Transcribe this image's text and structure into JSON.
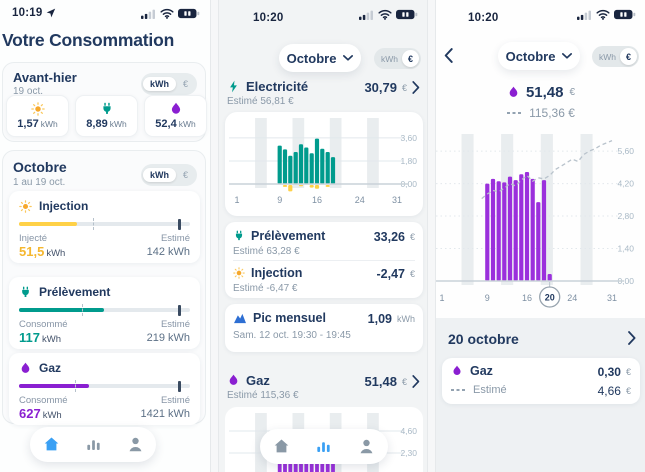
{
  "ui": {
    "unit_kwh": "kWh",
    "unit_eur": "€"
  },
  "colors": {
    "teal": "#009b8d",
    "yellow_bar": "#ffd147",
    "gold_text": "#f5b72f",
    "purple": "#8a1fd1",
    "purple_bar": "#9b30dc",
    "blue_active": "#3aa0f4",
    "navy": "#21395f",
    "pic_blue": "#2e6fd3"
  },
  "panels": {
    "home": {
      "status_time": "10:19",
      "title": "Votre Consommation",
      "yesterday_card": {
        "title": "Avant-hier",
        "date": "19 oct.",
        "chips": [
          {
            "icon": "sun-icon",
            "value": "1,57",
            "unit": "kWh"
          },
          {
            "icon": "plug-icon",
            "value": "8,89",
            "unit": "kWh"
          },
          {
            "icon": "flame-icon",
            "value": "52,4",
            "unit": "kWh"
          }
        ]
      },
      "month_card": {
        "title": "Octobre",
        "date": "1 au 19 oct.",
        "meters": [
          {
            "label": "Injection",
            "icon": "sun-icon",
            "left_label": "Injecté",
            "left_value": "51,5",
            "left_unit": "kWh",
            "right_label": "Estimé",
            "right_value": "142 kWh",
            "consumed": 51.5,
            "estimated": 142,
            "marker_pct": 43,
            "bar_color": "#ffd147",
            "value_color": "#f5b72f"
          },
          {
            "label": "Prélèvement",
            "icon": "plug-icon",
            "left_label": "Consommé",
            "left_value": "117",
            "left_unit": "kWh",
            "right_label": "Estimé",
            "right_value": "219 kWh",
            "consumed": 117,
            "estimated": 219,
            "marker_pct": 37,
            "bar_color": "#009b8d",
            "value_color": "#009b8d"
          },
          {
            "label": "Gaz",
            "icon": "flame-icon",
            "left_label": "Consommé",
            "left_value": "627",
            "left_unit": "kWh",
            "right_label": "Estimé",
            "right_value": "1421 kWh",
            "consumed": 627,
            "estimated": 1421,
            "marker_pct": 33,
            "bar_color": "#8a1fd1",
            "value_color": "#8a1fd1"
          }
        ]
      }
    },
    "overview": {
      "status_time": "10:20",
      "month_pill": "Octobre",
      "electricity": {
        "label": "Electricité",
        "amount": "30,79",
        "currency": "€",
        "estimate": "Estimé 56,81 €"
      },
      "prelevement": {
        "label": "Prélèvement",
        "amount": "33,26",
        "currency": "€",
        "estimate": "Estimé 63,28 €"
      },
      "injection": {
        "label": "Injection",
        "amount": "-2,47",
        "currency": "€",
        "estimate": "Estimé -6,47 €"
      },
      "pic": {
        "label": "Pic mensuel",
        "amount": "1,09",
        "unit": "kWh",
        "subtitle": "Sam. 12 oct. 19:30 - 19:45"
      },
      "gas": {
        "label": "Gaz",
        "amount": "51,48",
        "currency": "€",
        "estimate": "Estimé 115,36 €"
      }
    },
    "gas_detail": {
      "status_time": "10:20",
      "month_pill": "Octobre",
      "summary": {
        "amount": "51,48",
        "currency": "€",
        "estimate_amount": "115,36",
        "estimate_currency": "€"
      },
      "day_section": {
        "title": "20 octobre",
        "gas_row": {
          "label": "Gaz",
          "amount": "0,30",
          "currency": "€"
        },
        "estimate_row": {
          "label": "Estimé",
          "amount": "4,66",
          "currency": "€"
        }
      }
    }
  },
  "chart_data": [
    {
      "id": "electricity-daily",
      "type": "bar",
      "x_days": [
        9,
        10,
        11,
        12,
        13,
        14,
        15,
        16,
        17,
        18,
        19
      ],
      "series": [
        {
          "name": "prelevement",
          "color": "#009b8d",
          "values": [
            3.0,
            2.7,
            2.2,
            2.5,
            3.1,
            2.85,
            2.4,
            3.55,
            2.75,
            2.5,
            2.1
          ]
        },
        {
          "name": "injection",
          "color": "#ffd147",
          "values": [
            0,
            -0.15,
            -0.5,
            0,
            -0.1,
            0,
            -0.2,
            -0.3,
            0,
            -0.15,
            0
          ]
        }
      ],
      "y_ticks": [
        {
          "v": 3.6,
          "label": "3,60"
        },
        {
          "v": 1.8,
          "label": "1,80"
        },
        {
          "v": 0,
          "label": "0,00"
        }
      ],
      "x_ticks": [
        1,
        9,
        16,
        24,
        31
      ],
      "xlim": [
        1,
        31
      ],
      "weekend_bands": [
        [
          5,
          6
        ],
        [
          12,
          13
        ],
        [
          19,
          20
        ],
        [
          26,
          27
        ]
      ]
    },
    {
      "id": "gas-daily-partial",
      "type": "bar",
      "x_days": [
        9,
        10,
        11,
        12,
        13,
        14,
        15,
        16,
        17,
        18,
        19
      ],
      "series": [
        {
          "name": "gaz",
          "color": "#9b30dc",
          "values": [
            4.2,
            4.4,
            4.3,
            4.25,
            4.5,
            4.35,
            4.6,
            4.7,
            4.4,
            3.4,
            4.35
          ]
        }
      ],
      "y_ticks": [
        {
          "v": 4.6,
          "label": "4,60"
        },
        {
          "v": 2.3,
          "label": "2,30"
        }
      ],
      "x_ticks": [],
      "xlim": [
        1,
        31
      ],
      "weekend_bands": [
        [
          5,
          6
        ],
        [
          12,
          13
        ],
        [
          19,
          20
        ],
        [
          26,
          27
        ]
      ],
      "clipped": true
    },
    {
      "id": "gas-daily-detail",
      "type": "bar+line",
      "x_days": [
        9,
        10,
        11,
        12,
        13,
        14,
        15,
        16,
        17,
        18,
        19,
        20
      ],
      "series": [
        {
          "name": "gaz",
          "color": "#9b30dc",
          "values": [
            4.2,
            4.4,
            4.3,
            4.25,
            4.5,
            4.35,
            4.6,
            4.7,
            4.4,
            3.4,
            4.35,
            0.3
          ]
        }
      ],
      "line": {
        "name": "estime",
        "style": "dashed",
        "color": "#b9c3cc",
        "points": [
          [
            8,
            3.55
          ],
          [
            9,
            3.75
          ],
          [
            10,
            3.9
          ],
          [
            11,
            3.85
          ],
          [
            12,
            4.0
          ],
          [
            13,
            4.2
          ],
          [
            14,
            4.1
          ],
          [
            15,
            4.35
          ],
          [
            16,
            4.55
          ],
          [
            17,
            4.3
          ],
          [
            18,
            4.45
          ],
          [
            19,
            4.4
          ],
          [
            20,
            4.55
          ],
          [
            21,
            4.8
          ],
          [
            22,
            4.95
          ],
          [
            23,
            5.1
          ],
          [
            24,
            5.25
          ],
          [
            25,
            5.15
          ],
          [
            26,
            5.45
          ],
          [
            27,
            5.6
          ],
          [
            28,
            5.7
          ],
          [
            29,
            5.85
          ],
          [
            30,
            5.95
          ],
          [
            31,
            6.05
          ]
        ]
      },
      "y_ticks": [
        {
          "v": 5.6,
          "label": "5,60"
        },
        {
          "v": 4.2,
          "label": "4,20"
        },
        {
          "v": 2.8,
          "label": "2,80"
        },
        {
          "v": 1.4,
          "label": "1,40"
        },
        {
          "v": 0,
          "label": "0,00"
        }
      ],
      "x_ticks": [
        1,
        9,
        16,
        24,
        31
      ],
      "selected_day": 20,
      "xlim": [
        1,
        31
      ],
      "weekend_bands": [
        [
          5,
          6
        ],
        [
          12,
          13
        ],
        [
          19,
          20
        ],
        [
          26,
          27
        ]
      ]
    }
  ]
}
